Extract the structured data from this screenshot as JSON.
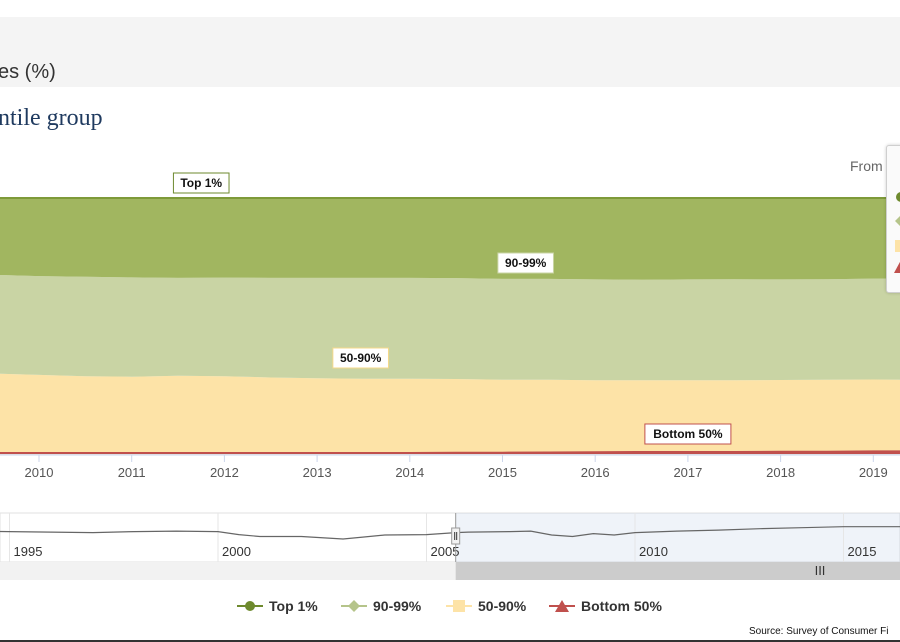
{
  "page_header": {
    "text": "es (%)"
  },
  "chart_title": "ntile group",
  "date_range": {
    "from_label": "From"
  },
  "colors": {
    "top1": "#a1b660",
    "top1_line": "#7e9a39",
    "p90_99": "#c9d4a4",
    "p50_90": "#fde3a7",
    "bottom50": "#c0504d",
    "legend_top1": "#6e8a2e",
    "legend_90_99": "#b5c48a",
    "legend_50_90": "#fde3a7",
    "legend_bottom50": "#c0504d"
  },
  "chart_data": {
    "type": "area",
    "stacking": "percent",
    "x_axis": {
      "ticks": [
        "2010",
        "2011",
        "2012",
        "2013",
        "2014",
        "2015",
        "2016",
        "2017",
        "2018",
        "2019"
      ]
    },
    "y_axis": {
      "range": [
        0,
        100
      ],
      "unit": "%"
    },
    "grid": true,
    "x": [
      2009.5,
      2010.0,
      2010.5,
      2011.0,
      2011.5,
      2012.0,
      2012.5,
      2013.0,
      2013.5,
      2014.0,
      2014.5,
      2015.0,
      2015.5,
      2016.0,
      2016.5,
      2017.0,
      2017.5,
      2018.0,
      2018.5,
      2019.0,
      2019.3
    ],
    "series": [
      {
        "name": "Bottom 50%",
        "values": [
          0.4,
          0.4,
          0.4,
          0.4,
          0.4,
          0.4,
          0.4,
          0.4,
          0.4,
          0.4,
          0.5,
          0.5,
          0.6,
          0.7,
          0.8,
          0.8,
          0.8,
          0.9,
          0.9,
          1.0,
          1.0
        ]
      },
      {
        "name": "50-90%",
        "values": [
          31.0,
          30.5,
          30.0,
          29.8,
          30.2,
          30.0,
          29.5,
          29.2,
          29.0,
          29.0,
          28.8,
          28.5,
          28.4,
          28.1,
          28.0,
          28.0,
          28.0,
          28.0,
          28.1,
          28.1,
          28.0
        ]
      },
      {
        "name": "90-99%",
        "values": [
          38.6,
          38.6,
          38.8,
          38.8,
          38.2,
          38.5,
          38.9,
          39.2,
          39.4,
          39.4,
          39.4,
          39.4,
          39.4,
          39.4,
          39.3,
          39.4,
          39.5,
          39.3,
          39.3,
          39.4,
          39.6
        ]
      },
      {
        "name": "Top 1%",
        "values": [
          30.0,
          30.5,
          30.8,
          31.0,
          31.2,
          31.1,
          31.2,
          31.2,
          31.2,
          31.2,
          31.3,
          31.6,
          31.6,
          31.8,
          31.9,
          31.8,
          31.7,
          31.8,
          31.7,
          31.5,
          31.4
        ]
      }
    ],
    "point_labels": [
      {
        "series": "Top 1%",
        "text": "Top 1%",
        "x": 2011.75
      },
      {
        "series": "90-99%",
        "text": "90-99%",
        "x": 2015.25
      },
      {
        "series": "50-90%",
        "text": "50-90%",
        "x": 2013.47
      },
      {
        "series": "Bottom 50%",
        "text": "Bottom 50%",
        "x": 2017.0
      }
    ],
    "navigator": {
      "ticks": [
        "1995",
        "2000",
        "2005",
        "2010",
        "2015"
      ],
      "window_start": 2005.7,
      "handle_label": "III",
      "points": [
        [
          1992.5,
          58
        ],
        [
          1993.0,
          62
        ],
        [
          1993.5,
          64
        ],
        [
          1994.0,
          63
        ],
        [
          1995.0,
          62
        ],
        [
          1996.0,
          61
        ],
        [
          1997.0,
          60
        ],
        [
          1998.0,
          62
        ],
        [
          1999.0,
          63
        ],
        [
          2000.0,
          62
        ],
        [
          2000.5,
          56
        ],
        [
          2001.0,
          52
        ],
        [
          2002.0,
          52
        ],
        [
          2003.0,
          47
        ],
        [
          2003.5,
          51
        ],
        [
          2004.0,
          55
        ],
        [
          2005.0,
          56
        ],
        [
          2005.7,
          60
        ],
        [
          2006.0,
          61
        ],
        [
          2007.0,
          62
        ],
        [
          2007.5,
          63
        ],
        [
          2008.0,
          55
        ],
        [
          2008.5,
          52
        ],
        [
          2009.0,
          58
        ],
        [
          2009.5,
          55
        ],
        [
          2010.0,
          60
        ],
        [
          2011.0,
          63
        ],
        [
          2012.0,
          65
        ],
        [
          2013.0,
          68
        ],
        [
          2014.0,
          70
        ],
        [
          2015.0,
          72
        ],
        [
          2016.0,
          72
        ],
        [
          2017.0,
          72
        ],
        [
          2018.0,
          74
        ],
        [
          2019.5,
          74
        ]
      ]
    },
    "legend": {
      "position": "bottom",
      "items": [
        "Top 1%",
        "90-99%",
        "50-90%",
        "Bottom 50%"
      ]
    }
  },
  "source_note": "Source: Survey of Consumer Fi"
}
